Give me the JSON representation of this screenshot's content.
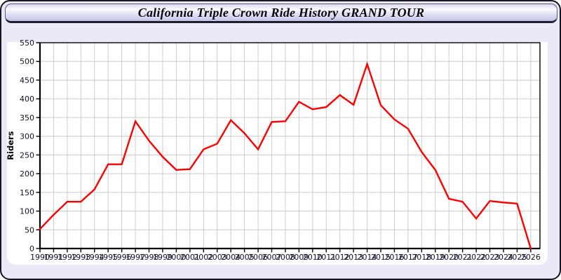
{
  "page": {
    "title": "California Triple Crown Ride History GRAND TOUR"
  },
  "ui_colors": {
    "page_background": "#e9e9f8",
    "titlebar_gradient_bottom": "#c3c5e8",
    "panel_background": "#ffffff",
    "outer_border": "#16161f"
  },
  "chart_data": {
    "type": "line",
    "title": "California Triple Crown Ride History GRAND TOUR",
    "ylabel": "Riders",
    "xlabel": "",
    "categories": [
      1990,
      1991,
      1992,
      1993,
      1994,
      1995,
      1996,
      1997,
      1998,
      1999,
      2000,
      2001,
      2002,
      2003,
      2004,
      2005,
      2006,
      2007,
      2008,
      2009,
      2010,
      2011,
      2012,
      2013,
      2014,
      2015,
      2016,
      2017,
      2018,
      2019,
      2020,
      2021,
      2022,
      2023,
      2024,
      2025,
      2026
    ],
    "values": [
      52,
      90,
      125,
      125,
      158,
      225,
      225,
      340,
      288,
      245,
      210,
      212,
      265,
      280,
      343,
      308,
      265,
      338,
      340,
      392,
      372,
      378,
      410,
      384,
      493,
      383,
      345,
      320,
      258,
      210,
      133,
      125,
      80,
      127,
      123,
      120,
      0
    ],
    "ylim": [
      0,
      550
    ],
    "ytick_step": 50,
    "grid": true,
    "legend_position": "none",
    "line_color": "#ff0000",
    "grid_color": "#cccccc",
    "axis_color": "#000000",
    "tick_label_color": "#101028"
  }
}
